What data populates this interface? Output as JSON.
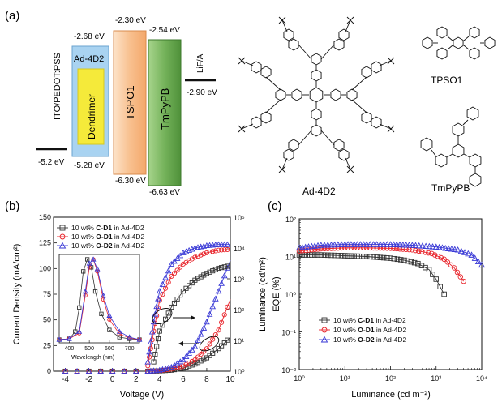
{
  "figure": {
    "panel_a": {
      "label": "(a)",
      "layers": [
        {
          "name": "ITO/PEDOT:PSS",
          "level": "-5.2 eV"
        },
        {
          "name": "Ad-4D2",
          "top": "-2.68 eV",
          "bottom": "-5.28 eV"
        },
        {
          "name": "Dendrimer"
        },
        {
          "name": "TSPO1",
          "top": "-2.30 eV",
          "bottom": "-6.30 eV"
        },
        {
          "name": "TmPyPB",
          "top": "-2.54 eV",
          "bottom": "-6.63 eV"
        },
        {
          "name": "LiF/Al",
          "level": "-2.90 eV"
        }
      ],
      "molecules": {
        "dendrimer_name": "Ad-4D2",
        "m1": "TPSO1",
        "m2": "TmPyPB"
      },
      "colors": {
        "ad4d2": "#a9d3f1",
        "dendrimer": "#f5ea3a",
        "tspo1": "#f8c08f",
        "tmpypb": "#74b25a"
      }
    },
    "panel_b": {
      "label": "(b)",
      "ylabel_left": "Current Density (mA/cm²)",
      "ylabel_right": "Luminance (cd/m²)",
      "xlabel": "Voltage (V)",
      "left_ticks": [
        "0",
        "25",
        "50",
        "75",
        "100",
        "125",
        "150"
      ],
      "right_ticks": [
        "10⁰",
        "10¹",
        "10²",
        "10³",
        "10⁴",
        "10⁵"
      ],
      "x_ticks": [
        "-4",
        "-2",
        "0",
        "2",
        "4",
        "6",
        "8",
        "10"
      ],
      "legend": [
        {
          "pre": "10 wt% ",
          "bold": "C-D1",
          "post": " in Ad-4D2"
        },
        {
          "pre": "10 wt% ",
          "bold": "O-D1",
          "post": " in Ad-4D2"
        },
        {
          "pre": "10 wt% ",
          "bold": "O-D2",
          "post": " in Ad-4D2"
        }
      ],
      "inset_xlabel": "Wavelength (nm)",
      "inset_ticks": [
        "400",
        "500",
        "600",
        "700"
      ]
    },
    "panel_c": {
      "label": "(c)",
      "ylabel": "EQE (%)",
      "xlabel": "Luminance (cd m⁻²)",
      "y_ticks": [
        "10²",
        "10¹",
        "10⁰",
        "10⁻¹",
        "10⁻²"
      ],
      "x_ticks": [
        "10⁰",
        "10¹",
        "10²",
        "10³",
        "10⁴"
      ],
      "legend": [
        {
          "pre": "10 wt% ",
          "bold": "C-D1",
          "post": " in Ad-4D2"
        },
        {
          "pre": "10 wt% ",
          "bold": "O-D1",
          "post": " in Ad-4D2"
        },
        {
          "pre": "10 wt% ",
          "bold": "O-D2",
          "post": " in Ad-4D2"
        }
      ]
    },
    "series_colors": [
      "#333333",
      "#e8232a",
      "#3a3ad6"
    ]
  },
  "chart_data": [
    {
      "type": "line",
      "title": "",
      "xlabel": "Voltage (V)",
      "ylabel": "Current Density (mA/cm²)",
      "y2label": "Luminance (cd/m²)",
      "xlim": [
        -5,
        10
      ],
      "ylim": [
        0,
        150
      ],
      "y2lim": [
        1,
        100000
      ],
      "y2scale": "log",
      "series": [
        {
          "name": "10 wt% C-D1 in Ad-4D2",
          "axis": "left",
          "x": [
            3,
            4,
            5,
            6,
            7,
            8,
            9,
            10
          ],
          "y": [
            0,
            0.3,
            1,
            3,
            7,
            13,
            22,
            33
          ]
        },
        {
          "name": "10 wt% O-D1 in Ad-4D2",
          "axis": "left",
          "x": [
            3,
            4,
            5,
            6,
            7,
            8,
            9,
            10
          ],
          "y": [
            0,
            0.5,
            2,
            5,
            11,
            22,
            40,
            70
          ]
        },
        {
          "name": "10 wt% O-D2 in Ad-4D2",
          "axis": "left",
          "x": [
            3,
            4,
            5,
            6,
            7,
            8,
            9,
            10
          ],
          "y": [
            0,
            1,
            4,
            11,
            24,
            48,
            78,
            108
          ]
        },
        {
          "name": "10 wt% C-D1 in Ad-4D2",
          "axis": "right",
          "x": [
            3.5,
            4,
            5,
            6,
            7,
            8,
            9,
            10
          ],
          "y": [
            2,
            20,
            120,
            400,
            900,
            1500,
            2200,
            2700
          ]
        },
        {
          "name": "10 wt% O-D1 in Ad-4D2",
          "axis": "right",
          "x": [
            3,
            3.5,
            4,
            5,
            6,
            7,
            8,
            9,
            10
          ],
          "y": [
            1.5,
            20,
            200,
            1200,
            3000,
            5000,
            7000,
            8500,
            9000
          ]
        },
        {
          "name": "10 wt% O-D2 in Ad-4D2",
          "axis": "right",
          "x": [
            3,
            3.5,
            4,
            5,
            6,
            7,
            8,
            9,
            10
          ],
          "y": [
            2,
            40,
            400,
            3000,
            7000,
            10000,
            12000,
            13000,
            13000
          ]
        }
      ]
    },
    {
      "type": "line",
      "title": "",
      "xlabel": "Wavelength (nm)",
      "ylabel": "",
      "xlim": [
        350,
        750
      ],
      "ylim": [
        0,
        1.05
      ],
      "series": [
        {
          "name": "10 wt% C-D1 in Ad-4D2",
          "x": [
            350,
            400,
            430,
            450,
            470,
            490,
            510,
            530,
            560,
            600,
            650,
            700,
            750
          ],
          "y": [
            0,
            0.01,
            0.1,
            0.4,
            0.85,
            1.0,
            0.9,
            0.6,
            0.32,
            0.12,
            0.03,
            0.01,
            0
          ]
        },
        {
          "name": "10 wt% O-D1 in Ad-4D2",
          "x": [
            350,
            400,
            450,
            480,
            500,
            520,
            540,
            570,
            600,
            650,
            700,
            750
          ],
          "y": [
            0,
            0.01,
            0.08,
            0.55,
            0.9,
            1.0,
            0.85,
            0.5,
            0.25,
            0.07,
            0.02,
            0
          ]
        },
        {
          "name": "10 wt% O-D2 in Ad-4D2",
          "x": [
            350,
            400,
            450,
            480,
            500,
            520,
            540,
            570,
            600,
            650,
            700,
            750
          ],
          "y": [
            0,
            0.01,
            0.1,
            0.6,
            0.95,
            1.0,
            0.88,
            0.55,
            0.3,
            0.1,
            0.03,
            0
          ]
        }
      ]
    },
    {
      "type": "line",
      "title": "",
      "xlabel": "Luminance (cd m⁻²)",
      "ylabel": "EQE (%)",
      "xscale": "log",
      "yscale": "log",
      "xlim": [
        1,
        10000
      ],
      "ylim": [
        0.01,
        100
      ],
      "series": [
        {
          "name": "10 wt% C-D1 in Ad-4D2",
          "x": [
            1,
            3,
            10,
            30,
            100,
            200,
            400,
            700,
            1000,
            1500
          ],
          "y": [
            11,
            11,
            10.5,
            10,
            9,
            8,
            6.5,
            4.5,
            2.5,
            1.0
          ]
        },
        {
          "name": "10 wt% O-D1 in Ad-4D2",
          "x": [
            1,
            3,
            10,
            30,
            100,
            300,
            800,
            1500,
            2500,
            4000
          ],
          "y": [
            14,
            16,
            17,
            17,
            16.5,
            15,
            12,
            8.5,
            5,
            2.2
          ]
        },
        {
          "name": "10 wt% O-D2 in Ad-4D2",
          "x": [
            1,
            3,
            10,
            30,
            100,
            300,
            1000,
            3000,
            6000,
            10000
          ],
          "y": [
            17,
            20,
            21,
            21,
            21,
            20,
            18,
            15,
            11,
            6
          ]
        }
      ]
    }
  ]
}
